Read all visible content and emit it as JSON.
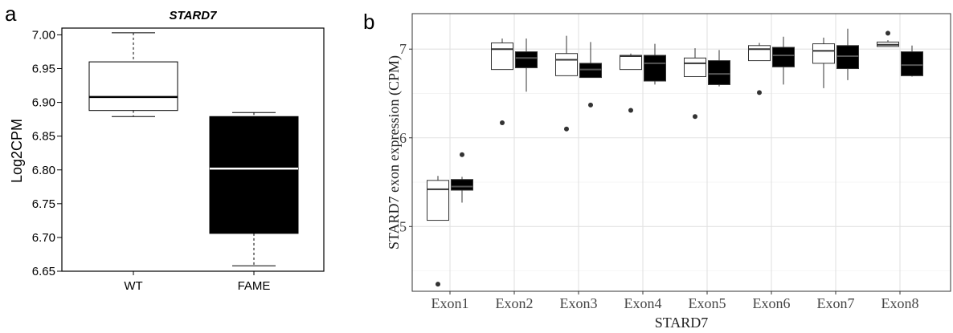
{
  "panels": {
    "a_label": "a",
    "b_label": "b"
  },
  "chart_data": [
    {
      "type": "box",
      "title": "STARD7",
      "xlabel": "",
      "ylabel": "Log2CPM",
      "ylim": [
        6.65,
        7.01
      ],
      "yticks": [
        "6.65",
        "6.70",
        "6.75",
        "6.80",
        "6.85",
        "6.90",
        "6.95",
        "7.00"
      ],
      "categories": [
        "WT",
        "FAME"
      ],
      "boxes": [
        {
          "category": "WT",
          "min": 6.879,
          "q1": 6.888,
          "median": 6.908,
          "q3": 6.96,
          "max": 7.003,
          "fill": "#ffffff"
        },
        {
          "category": "FAME",
          "min": 6.658,
          "q1": 6.706,
          "median": 6.802,
          "q3": 6.879,
          "max": 6.885,
          "fill": "#000000"
        }
      ]
    },
    {
      "type": "box",
      "title": "",
      "xlabel": "STARD7",
      "ylabel": "STARD7 exon expression (CPM)",
      "ylim": [
        4.27,
        7.4
      ],
      "yticks": [
        "5",
        "6",
        "7"
      ],
      "grid": true,
      "categories": [
        "Exon1",
        "Exon2",
        "Exon3",
        "Exon4",
        "Exon5",
        "Exon6",
        "Exon7",
        "Exon8"
      ],
      "groups": [
        {
          "fill": "#ffffff",
          "boxes": [
            {
              "min": 5.07,
              "q1": 5.07,
              "median": 5.42,
              "q3": 5.52,
              "max": 5.57,
              "outliers": [
                4.35
              ]
            },
            {
              "min": 6.77,
              "q1": 6.77,
              "median": 7.0,
              "q3": 7.07,
              "max": 7.12,
              "outliers": [
                6.17
              ]
            },
            {
              "min": 6.7,
              "q1": 6.7,
              "median": 6.88,
              "q3": 6.95,
              "max": 7.15,
              "outliers": [
                6.1
              ]
            },
            {
              "min": 6.77,
              "q1": 6.77,
              "median": 6.92,
              "q3": 6.93,
              "max": 6.95,
              "outliers": [
                6.31
              ]
            },
            {
              "min": 6.69,
              "q1": 6.69,
              "median": 6.84,
              "q3": 6.9,
              "max": 7.01,
              "outliers": [
                6.24
              ]
            },
            {
              "min": 6.87,
              "q1": 6.87,
              "median": 7.0,
              "q3": 7.04,
              "max": 7.07,
              "outliers": [
                6.51
              ]
            },
            {
              "min": 6.56,
              "q1": 6.84,
              "median": 6.98,
              "q3": 7.06,
              "max": 7.13,
              "outliers": []
            },
            {
              "min": 7.03,
              "q1": 7.03,
              "median": 7.05,
              "q3": 7.08,
              "max": 7.1,
              "outliers": [
                7.18
              ]
            }
          ]
        },
        {
          "fill": "#000000",
          "boxes": [
            {
              "min": 5.27,
              "q1": 5.41,
              "median": 5.45,
              "q3": 5.53,
              "max": 5.56,
              "outliers": [
                5.81
              ]
            },
            {
              "min": 6.52,
              "q1": 6.79,
              "median": 6.9,
              "q3": 6.97,
              "max": 7.12,
              "outliers": []
            },
            {
              "min": 6.68,
              "q1": 6.68,
              "median": 6.77,
              "q3": 6.84,
              "max": 7.08,
              "outliers": [
                6.37
              ]
            },
            {
              "min": 6.6,
              "q1": 6.64,
              "median": 6.84,
              "q3": 6.93,
              "max": 7.06,
              "outliers": []
            },
            {
              "min": 6.58,
              "q1": 6.6,
              "median": 6.72,
              "q3": 6.87,
              "max": 6.99,
              "outliers": []
            },
            {
              "min": 6.6,
              "q1": 6.8,
              "median": 6.93,
              "q3": 7.02,
              "max": 7.14,
              "outliers": []
            },
            {
              "min": 6.65,
              "q1": 6.78,
              "median": 6.92,
              "q3": 7.04,
              "max": 7.23,
              "outliers": []
            },
            {
              "min": 6.69,
              "q1": 6.7,
              "median": 6.82,
              "q3": 6.97,
              "max": 7.04,
              "outliers": []
            }
          ]
        }
      ]
    }
  ]
}
